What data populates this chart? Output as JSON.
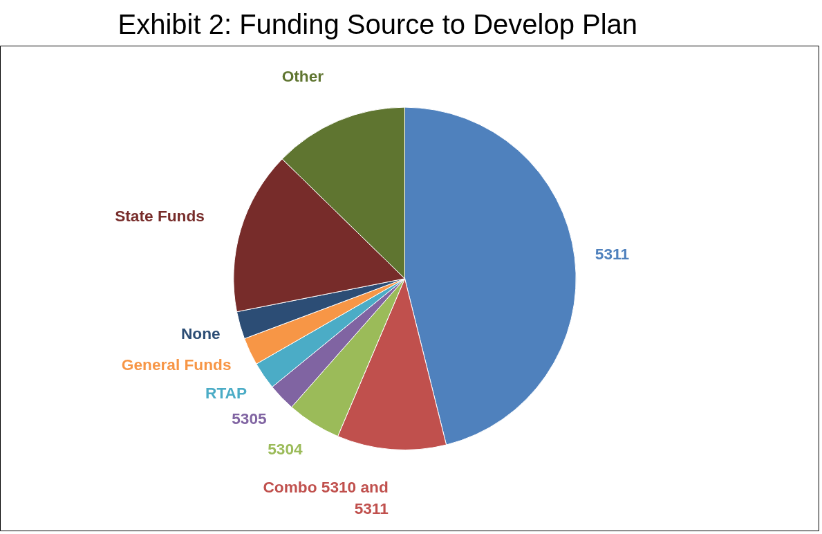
{
  "chart_data": {
    "type": "pie",
    "title": "Exhibit 2: Funding Source to Develop Plan",
    "categories": [
      "5311",
      "Combo 5310 and 5311",
      "5304",
      "5305",
      "RTAP",
      "General Funds",
      "None",
      "State Funds",
      "Other"
    ],
    "values": [
      46.1,
      10.3,
      5.1,
      2.6,
      2.6,
      2.6,
      2.6,
      15.4,
      12.7
    ],
    "colors": [
      "#4f81bd",
      "#c0504d",
      "#9bbb59",
      "#8064a2",
      "#4bacc6",
      "#f79646",
      "#2c4d75",
      "#772c2a",
      "#5f7530"
    ]
  }
}
